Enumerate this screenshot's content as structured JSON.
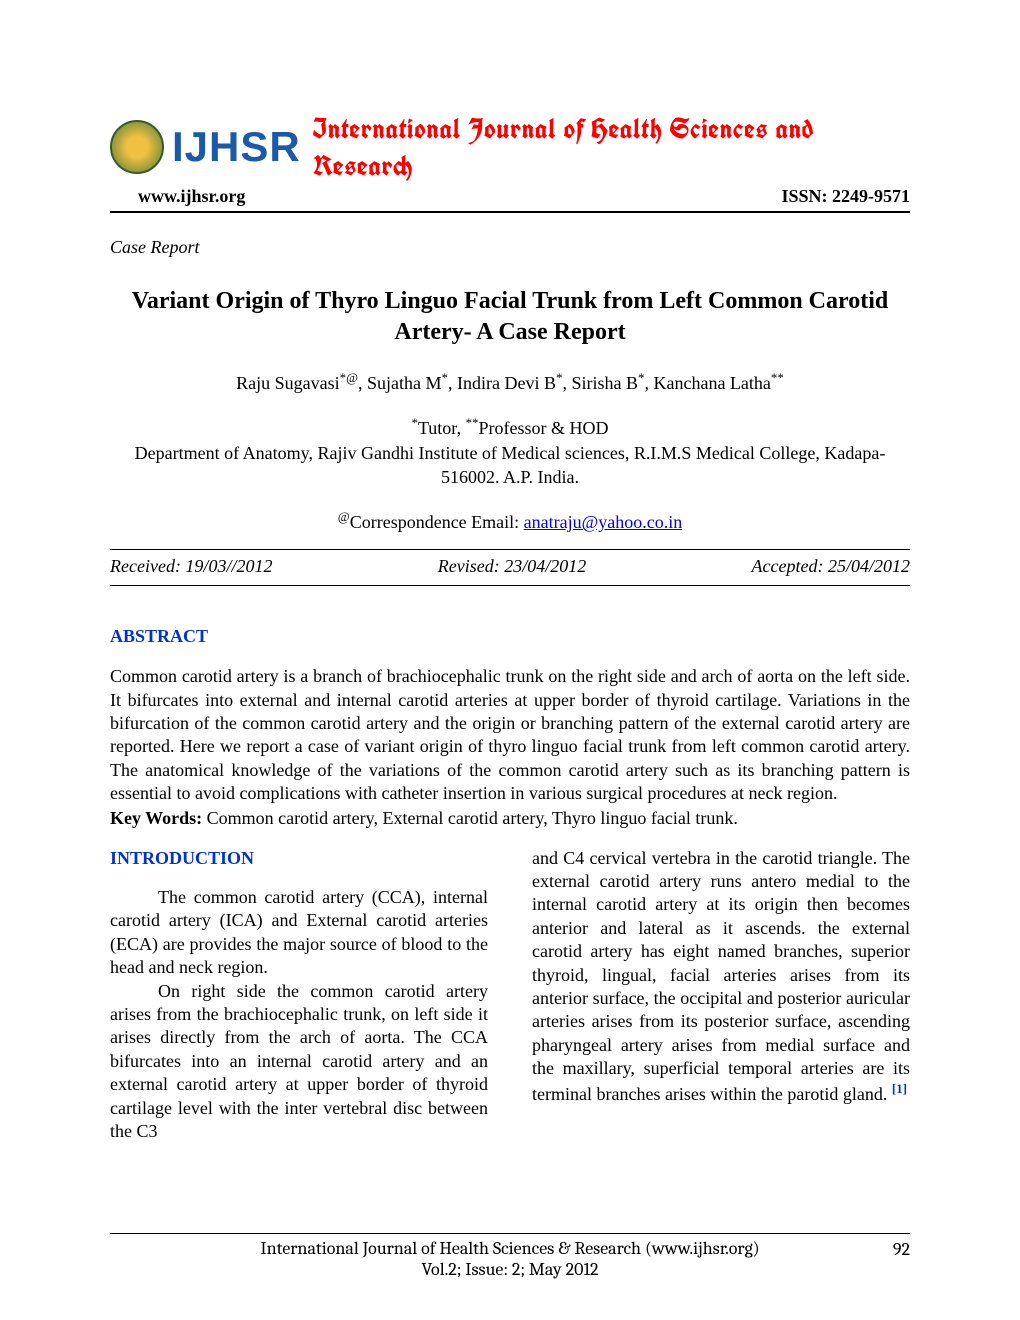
{
  "header": {
    "logo_text": "IJHSR",
    "journal_title": "International Journal of Health Sciences and Research",
    "url": "www.ijhsr.org",
    "issn": "ISSN: 2249-9571"
  },
  "article": {
    "section_label": "Case Report",
    "title": "Variant Origin of Thyro Linguo Facial Trunk from Left Common   Carotid Artery- A Case Report",
    "authors_html": "Raju Sugavasi*@, Sujatha M*, Indira Devi B*, Sirisha B*, Kanchana Latha**",
    "affil_roles": "*Tutor, **Professor & HOD",
    "affil_dept": "Department of Anatomy, Rajiv Gandhi Institute of Medical sciences, R.I.M.S Medical College, Kadapa- 516002. A.P. India.",
    "corr_label": "@Correspondence Email: ",
    "corr_email": "anatraju@yahoo.co.in"
  },
  "dates": {
    "received": "Received: 19/03//2012",
    "revised": "Revised: 23/04/2012",
    "accepted": "Accepted: 25/04/2012"
  },
  "abstract": {
    "heading": "ABSTRACT",
    "text": "Common carotid artery is a branch of brachiocephalic trunk on the right side and arch of aorta on the left side. It bifurcates into external and internal carotid arteries at upper border of thyroid cartilage. Variations in the bifurcation of the common carotid artery and the origin or branching pattern of the external carotid artery are reported. Here we report a case of variant origin of thyro linguo facial trunk from left common carotid artery. The anatomical knowledge of the variations of the common carotid artery such as its branching pattern is essential to avoid complications with catheter insertion in various surgical procedures at neck region.",
    "keywords_label": "Key Words: ",
    "keywords": "Common carotid artery, External carotid artery, Thyro linguo facial trunk."
  },
  "intro": {
    "heading": "INTRODUCTION",
    "left_p1": "The common carotid artery (CCA), internal carotid artery (ICA) and External carotid arteries (ECA) are provides the major source of blood to the head and neck region.",
    "left_p2": "On right side the common carotid artery arises from the brachiocephalic trunk, on left side it arises directly from the arch of aorta. The CCA bifurcates into an internal carotid artery and an external carotid artery at upper border of thyroid cartilage level with the inter vertebral disc between the C3",
    "right_p1a": "and C4 cervical vertebra in the carotid triangle. The external carotid artery runs antero medial to the internal carotid artery at its origin then becomes anterior and lateral as it ascends. the external carotid artery has eight named branches, superior thyroid, lingual, facial arteries arises from its anterior surface, the occipital and posterior auricular arteries arises from its posterior surface, ascending pharyngeal artery arises from medial surface and the maxillary, superficial temporal arteries are its terminal branches arises within the parotid gland. ",
    "ref1": "[1]"
  },
  "footer": {
    "line1": "International Journal of Health Sciences & Research (www.ijhsr.org)",
    "line2": "Vol.2; Issue: 2; May 2012",
    "page": "92"
  },
  "colors": {
    "red": "#ff0000",
    "blue_heading": "#0033cc",
    "link_blue": "#0000ee",
    "logo_blue": "#1a5aa8"
  }
}
